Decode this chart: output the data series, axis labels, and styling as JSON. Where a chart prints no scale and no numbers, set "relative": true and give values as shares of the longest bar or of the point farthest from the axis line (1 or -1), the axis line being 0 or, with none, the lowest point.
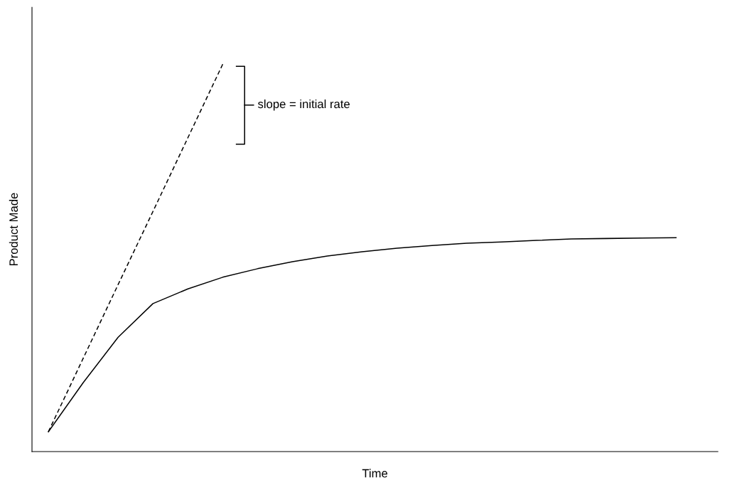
{
  "chart_data": {
    "type": "line",
    "relative": true,
    "xlabel": "Time",
    "ylabel": "Product Made",
    "categories": [
      null,
      null,
      null,
      null,
      null,
      null,
      null,
      null,
      null,
      null,
      null,
      null,
      null,
      null,
      null,
      null,
      null,
      null,
      null
    ],
    "series": [
      {
        "color": "#000000",
        "line_style": "solid",
        "values": [
          0.051,
          0.178,
          0.295,
          0.382,
          0.42,
          0.45,
          0.472,
          0.49,
          0.505,
          0.516,
          0.525,
          0.532,
          0.538,
          0.541,
          0.545,
          0.549,
          0.55,
          0.551,
          0.552
        ]
      },
      {
        "color": "#000000",
        "line_style": "dashed",
        "values": [
          0.051,
          0.241,
          0.431,
          0.62,
          0.81,
          1.0,
          null,
          null,
          null,
          null,
          null,
          null,
          null,
          null,
          null,
          null,
          null,
          null,
          null
        ]
      }
    ],
    "annotations": [
      "slope = initial rate"
    ]
  }
}
